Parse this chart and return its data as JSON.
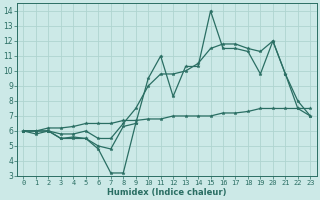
{
  "xlabel": "Humidex (Indice chaleur)",
  "bg_color": "#cce9e7",
  "line_color": "#2a6e63",
  "grid_color": "#afd4d0",
  "x": [
    0,
    1,
    2,
    3,
    4,
    5,
    6,
    7,
    8,
    9,
    10,
    11,
    12,
    13,
    14,
    15,
    16,
    17,
    18,
    19,
    20,
    21,
    22,
    23
  ],
  "line1": [
    6.0,
    6.0,
    6.0,
    5.5,
    5.5,
    5.5,
    4.8,
    3.2,
    3.2,
    6.5,
    null,
    null,
    null,
    null,
    null,
    null,
    null,
    null,
    null,
    null,
    null,
    null,
    null,
    null
  ],
  "line2": [
    6.0,
    5.8,
    6.0,
    5.5,
    5.6,
    5.5,
    5.0,
    4.8,
    6.3,
    6.5,
    9.5,
    11.0,
    8.3,
    10.3,
    10.3,
    14.0,
    11.5,
    11.5,
    11.3,
    9.8,
    12.0,
    9.8,
    8.0,
    7.0
  ],
  "line3": [
    6.0,
    6.0,
    6.0,
    5.8,
    5.8,
    6.0,
    5.5,
    5.5,
    6.5,
    7.5,
    9.0,
    9.8,
    9.8,
    10.0,
    10.5,
    11.5,
    11.8,
    11.8,
    11.5,
    11.3,
    12.0,
    9.8,
    7.5,
    7.0
  ],
  "line4": [
    6.0,
    6.0,
    6.2,
    6.2,
    6.3,
    6.5,
    6.5,
    6.5,
    6.7,
    6.7,
    6.8,
    6.8,
    7.0,
    7.0,
    7.0,
    7.0,
    7.2,
    7.2,
    7.3,
    7.5,
    7.5,
    7.5,
    7.5,
    7.5
  ],
  "xlim": [
    -0.5,
    23.5
  ],
  "ylim": [
    3.0,
    14.5
  ],
  "yticks": [
    3,
    4,
    5,
    6,
    7,
    8,
    9,
    10,
    11,
    12,
    13,
    14
  ],
  "xticks": [
    0,
    1,
    2,
    3,
    4,
    5,
    6,
    7,
    8,
    9,
    10,
    11,
    12,
    13,
    14,
    15,
    16,
    17,
    18,
    19,
    20,
    21,
    22,
    23
  ],
  "xlabel_fontsize": 6.0,
  "tick_fontsize": 5.0,
  "lw": 0.9,
  "ms": 2.5
}
